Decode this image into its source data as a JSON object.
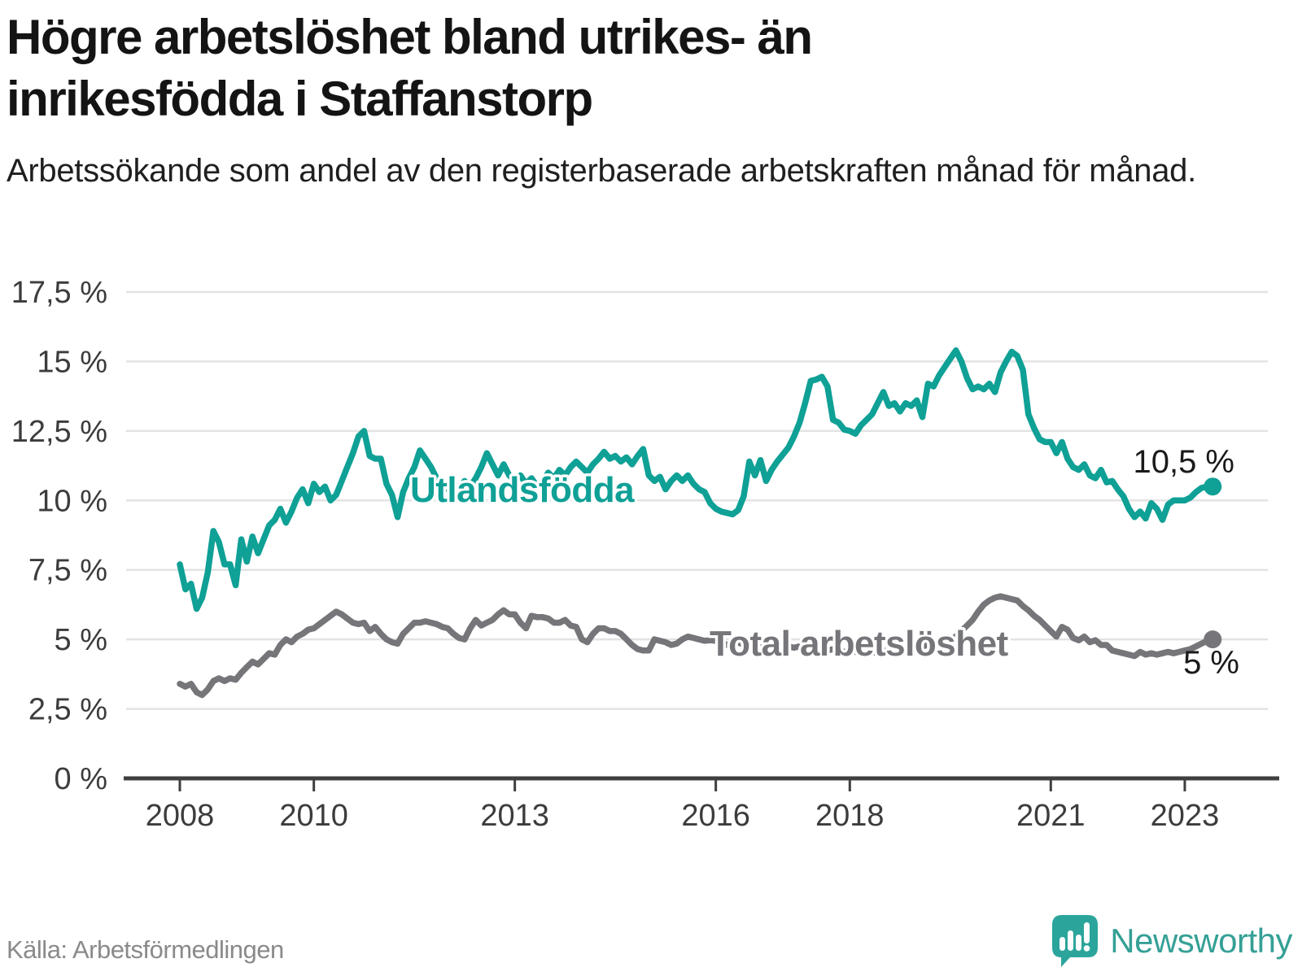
{
  "header": {
    "title": "Högre arbetslöshet bland utrikes- än inrikesfödda i Staffanstorp",
    "subtitle": "Arbetssökande som andel av den registerbaserade arbetskraften månad för månad."
  },
  "footer": {
    "source": "Källa: Arbetsförmedlingen",
    "brand": "Newsworthy",
    "logo_icon": "speech-bubble-bar-chart"
  },
  "colors": {
    "series_foreign": "#0fa096",
    "series_total": "#75757a",
    "gridline": "#e3e3e3",
    "axis": "#3f3f3f",
    "tick_label": "#3c3c3c",
    "value_label": "#1a1a1a",
    "title_text": "#141414",
    "source_text": "#8a8a8a",
    "brand_teal": "#35a096"
  },
  "chart_data": {
    "type": "line",
    "title": "Högre arbetslöshet bland utrikes- än inrikesfödda i Staffanstorp",
    "xlabel": "",
    "ylabel": "",
    "frequency": "monthly",
    "x_start_year": 2008,
    "x_start_month": 1,
    "x_end_year": 2023,
    "x_end_month": 6,
    "grid": true,
    "ylim": [
      0,
      18.4
    ],
    "x_tick_years": [
      "2008",
      "2010",
      "2013",
      "2016",
      "2018",
      "2021",
      "2023"
    ],
    "y_ticks": [
      {
        "label": "17,5 %",
        "value": 17.5
      },
      {
        "label": "15 %",
        "value": 15
      },
      {
        "label": "12,5 %",
        "value": 12.5
      },
      {
        "label": "10 %",
        "value": 10
      },
      {
        "label": "7,5 %",
        "value": 7.5
      },
      {
        "label": "5 %",
        "value": 5
      },
      {
        "label": "2,5 %",
        "value": 2.5
      },
      {
        "label": "0 %",
        "value": 0
      }
    ],
    "series": [
      {
        "name": "Utlandsfödda",
        "color": "#0fa096",
        "end_label": "10,5 %",
        "end_value": 10.5,
        "values": [
          7.7,
          6.8,
          7.0,
          6.1,
          6.5,
          7.4,
          8.9,
          8.5,
          7.7,
          7.7,
          6.95,
          8.6,
          7.8,
          8.7,
          8.1,
          8.6,
          9.1,
          9.3,
          9.7,
          9.2,
          9.6,
          10.1,
          10.4,
          9.9,
          10.6,
          10.3,
          10.5,
          10.0,
          10.2,
          10.7,
          11.2,
          11.7,
          12.3,
          12.5,
          11.6,
          11.5,
          11.5,
          10.6,
          10.2,
          9.4,
          10.3,
          10.8,
          11.2,
          11.8,
          11.5,
          11.2,
          10.8,
          10.5,
          10.4,
          10.6,
          10.4,
          10.7,
          10.5,
          10.8,
          11.2,
          11.7,
          11.3,
          10.9,
          11.3,
          10.9,
          10.7,
          10.9,
          10.6,
          10.8,
          10.5,
          10.7,
          11.0,
          10.8,
          11.1,
          10.9,
          11.2,
          11.4,
          11.2,
          11.0,
          11.3,
          11.5,
          11.75,
          11.5,
          11.6,
          11.4,
          11.55,
          11.3,
          11.6,
          11.85,
          10.9,
          10.7,
          10.85,
          10.4,
          10.7,
          10.9,
          10.7,
          10.9,
          10.6,
          10.4,
          10.3,
          9.9,
          9.7,
          9.6,
          9.55,
          9.5,
          9.65,
          10.15,
          11.4,
          10.9,
          11.45,
          10.7,
          11.1,
          11.4,
          11.65,
          11.9,
          12.3,
          12.8,
          13.5,
          14.3,
          14.35,
          14.45,
          14.1,
          12.9,
          12.8,
          12.55,
          12.5,
          12.4,
          12.7,
          12.9,
          13.1,
          13.5,
          13.9,
          13.4,
          13.5,
          13.2,
          13.5,
          13.4,
          13.6,
          13.0,
          14.2,
          14.1,
          14.5,
          14.8,
          15.1,
          15.4,
          15.0,
          14.4,
          14.0,
          14.1,
          14.0,
          14.2,
          13.9,
          14.6,
          15.0,
          15.35,
          15.2,
          14.7,
          13.1,
          12.6,
          12.2,
          12.1,
          12.1,
          11.7,
          12.1,
          11.5,
          11.2,
          11.1,
          11.3,
          10.9,
          10.8,
          11.1,
          10.65,
          10.7,
          10.4,
          10.15,
          9.7,
          9.4,
          9.6,
          9.35,
          9.9,
          9.7,
          9.3,
          9.85,
          10.0,
          10.0,
          10.0,
          10.1,
          10.3,
          10.45,
          10.5,
          10.5
        ]
      },
      {
        "name": "Total arbetslöshet",
        "color": "#75757a",
        "end_label": "5 %",
        "end_value": 5.0,
        "values": [
          3.4,
          3.3,
          3.4,
          3.1,
          3.0,
          3.2,
          3.5,
          3.6,
          3.5,
          3.6,
          3.55,
          3.8,
          4.0,
          4.2,
          4.1,
          4.3,
          4.5,
          4.45,
          4.8,
          5.0,
          4.9,
          5.1,
          5.2,
          5.35,
          5.4,
          5.55,
          5.7,
          5.85,
          6.0,
          5.9,
          5.75,
          5.6,
          5.55,
          5.6,
          5.3,
          5.45,
          5.2,
          5.0,
          4.9,
          4.85,
          5.2,
          5.4,
          5.6,
          5.6,
          5.65,
          5.6,
          5.55,
          5.45,
          5.4,
          5.2,
          5.05,
          5.0,
          5.4,
          5.7,
          5.5,
          5.6,
          5.7,
          5.9,
          6.05,
          5.9,
          5.9,
          5.6,
          5.4,
          5.85,
          5.8,
          5.8,
          5.75,
          5.6,
          5.6,
          5.7,
          5.5,
          5.45,
          5.0,
          4.9,
          5.2,
          5.4,
          5.4,
          5.3,
          5.3,
          5.2,
          5.0,
          4.8,
          4.65,
          4.6,
          4.6,
          5.0,
          4.95,
          4.9,
          4.8,
          4.85,
          5.0,
          5.1,
          5.05,
          5.0,
          4.95,
          4.97,
          4.95,
          4.9,
          4.8,
          4.85,
          4.9,
          4.8,
          4.75,
          4.8,
          4.7,
          4.75,
          4.8,
          4.75,
          4.8,
          4.75,
          4.7,
          4.75,
          4.65,
          4.6,
          4.7,
          4.65,
          4.6,
          4.65,
          4.6,
          4.55,
          4.6,
          4.55,
          4.5,
          4.6,
          4.55,
          4.5,
          4.6,
          4.55,
          4.6,
          4.65,
          4.6,
          4.7,
          4.7,
          4.75,
          4.8,
          4.85,
          4.9,
          4.95,
          5.0,
          5.1,
          5.3,
          5.5,
          5.7,
          6.0,
          6.25,
          6.4,
          6.5,
          6.55,
          6.5,
          6.45,
          6.4,
          6.2,
          6.05,
          5.85,
          5.7,
          5.5,
          5.3,
          5.1,
          5.45,
          5.35,
          5.05,
          4.97,
          5.1,
          4.9,
          4.97,
          4.8,
          4.8,
          4.6,
          4.55,
          4.5,
          4.45,
          4.4,
          4.55,
          4.45,
          4.5,
          4.45,
          4.5,
          4.55,
          4.5,
          4.55,
          4.6,
          4.65,
          4.75,
          4.85,
          4.95,
          5.0
        ]
      }
    ],
    "series_label_positions_note": "Utlandsfödda label sits on the line around 2011-2014; Total arbetslöshet label sits on the line around 2016-2019"
  }
}
